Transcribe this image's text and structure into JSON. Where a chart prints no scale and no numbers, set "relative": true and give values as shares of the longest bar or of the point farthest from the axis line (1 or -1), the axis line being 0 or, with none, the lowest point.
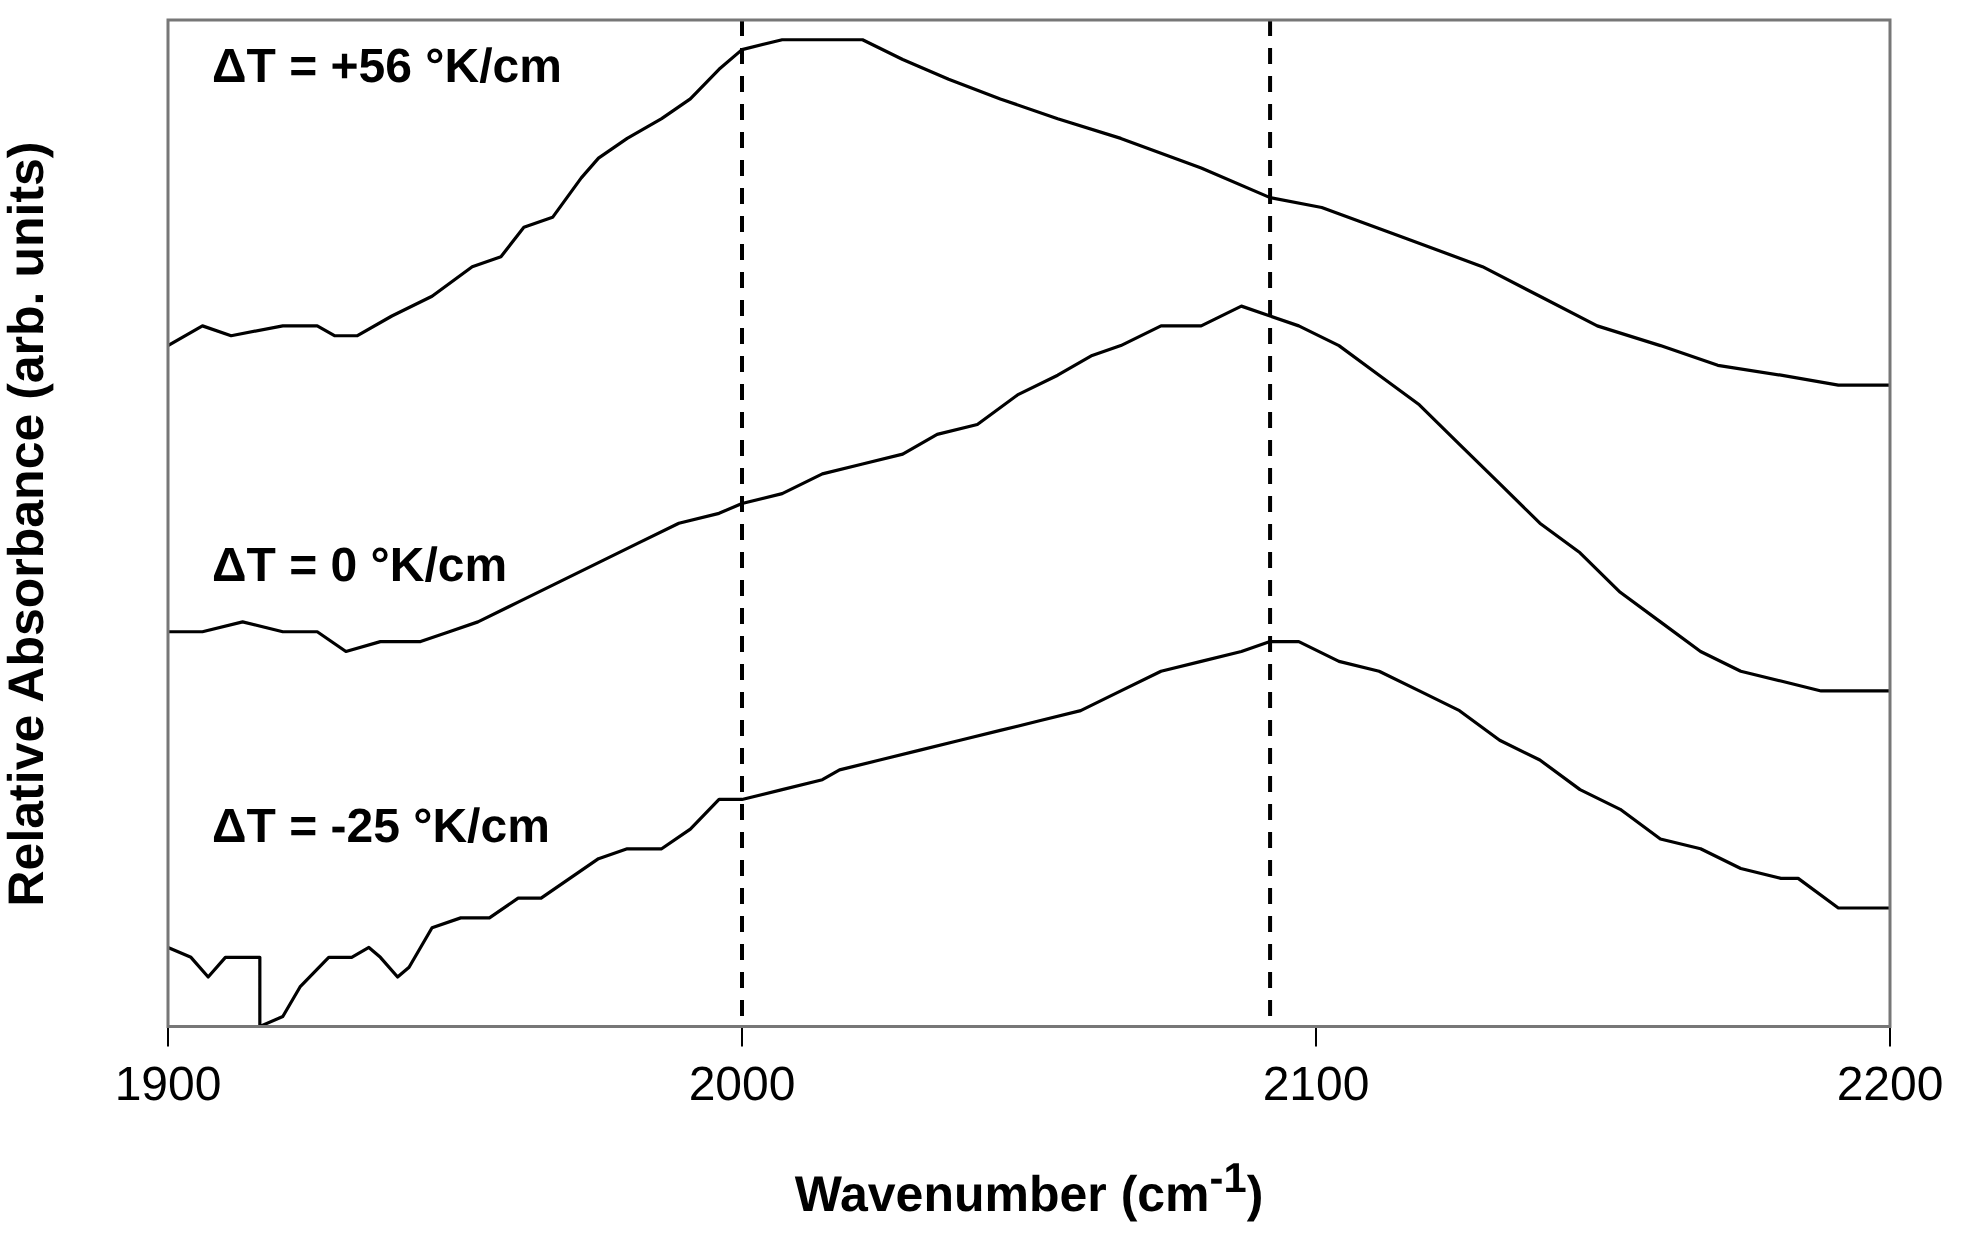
{
  "chart_data": {
    "type": "line",
    "xlabel": "Wavenumber (cm$^{-1}$)",
    "ylabel": "Relative Absorbance (arb. units)",
    "relative": true,
    "xlim": [
      1900,
      2200
    ],
    "xticks": [
      1900,
      2000,
      2100,
      2200
    ],
    "grid": false,
    "legend": false,
    "marker": "none",
    "line_style": "solid",
    "series": [
      {
        "name": "ΔT = +56 °K/cm",
        "color": "#000000",
        "x": [
          1900,
          1906,
          1911,
          1920,
          1926,
          1929,
          1933,
          1939,
          1946,
          1953,
          1958,
          1962,
          1967,
          1972,
          1975,
          1980,
          1986,
          1991,
          1996,
          2000,
          2007,
          2014,
          2021,
          2028,
          2036,
          2045,
          2055,
          2066,
          2080,
          2092,
          2101,
          2115,
          2129,
          2139,
          2149,
          2160,
          2170,
          2181,
          2191,
          2200
        ],
        "values": [
          0.69,
          0.71,
          0.7,
          0.71,
          0.71,
          0.7,
          0.7,
          0.72,
          0.74,
          0.77,
          0.78,
          0.81,
          0.82,
          0.86,
          0.88,
          0.9,
          0.92,
          0.94,
          0.97,
          0.99,
          1.0,
          1.0,
          1.0,
          0.98,
          0.96,
          0.94,
          0.92,
          0.9,
          0.87,
          0.84,
          0.83,
          0.8,
          0.77,
          0.74,
          0.71,
          0.69,
          0.67,
          0.66,
          0.65,
          0.65
        ]
      },
      {
        "name": "ΔT = 0 °K/cm",
        "color": "#000000",
        "x": [
          1900,
          1906,
          1913,
          1920,
          1926,
          1931,
          1937,
          1944,
          1949,
          1954,
          1961,
          1968,
          1975,
          1982,
          1989,
          1996,
          2000,
          2007,
          2014,
          2021,
          2028,
          2034,
          2041,
          2048,
          2055,
          2061,
          2066,
          2073,
          2080,
          2087,
          2092,
          2097,
          2104,
          2111,
          2118,
          2125,
          2132,
          2139,
          2146,
          2153,
          2160,
          2167,
          2174,
          2181,
          2188,
          2195,
          2200
        ],
        "values": [
          0.4,
          0.4,
          0.41,
          0.4,
          0.4,
          0.38,
          0.39,
          0.39,
          0.4,
          0.41,
          0.43,
          0.45,
          0.47,
          0.49,
          0.51,
          0.52,
          0.53,
          0.54,
          0.56,
          0.57,
          0.58,
          0.6,
          0.61,
          0.64,
          0.66,
          0.68,
          0.69,
          0.71,
          0.71,
          0.73,
          0.72,
          0.71,
          0.69,
          0.66,
          0.63,
          0.59,
          0.55,
          0.51,
          0.48,
          0.44,
          0.41,
          0.38,
          0.36,
          0.35,
          0.34,
          0.34,
          0.34
        ]
      },
      {
        "name": "ΔT = -25 °K/cm",
        "color": "#000000",
        "x": [
          1900,
          1904,
          1907,
          1910,
          1913,
          1916,
          1916,
          1920,
          1923,
          1928,
          1932,
          1935,
          1937,
          1940,
          1942,
          1946,
          1951,
          1956,
          1961,
          1965,
          1970,
          1975,
          1980,
          1986,
          1991,
          1996,
          2000,
          2007,
          2014,
          2017,
          2024,
          2031,
          2038,
          2045,
          2052,
          2059,
          2066,
          2073,
          2080,
          2087,
          2092,
          2097,
          2104,
          2111,
          2118,
          2125,
          2132,
          2139,
          2146,
          2153,
          2160,
          2167,
          2174,
          2181,
          2184,
          2191,
          2200
        ],
        "values": [
          0.08,
          0.07,
          0.05,
          0.07,
          0.07,
          0.07,
          0.0,
          0.01,
          0.04,
          0.07,
          0.07,
          0.08,
          0.07,
          0.05,
          0.06,
          0.1,
          0.11,
          0.11,
          0.13,
          0.13,
          0.15,
          0.17,
          0.18,
          0.18,
          0.2,
          0.23,
          0.23,
          0.24,
          0.25,
          0.26,
          0.27,
          0.28,
          0.29,
          0.3,
          0.31,
          0.32,
          0.34,
          0.36,
          0.37,
          0.38,
          0.39,
          0.39,
          0.37,
          0.36,
          0.34,
          0.32,
          0.29,
          0.27,
          0.24,
          0.22,
          0.19,
          0.18,
          0.16,
          0.15,
          0.15,
          0.12,
          0.12
        ]
      }
    ],
    "ref_lines": [
      {
        "axis": "x",
        "value": 2000,
        "line_style": "dashed",
        "color": "#000000"
      },
      {
        "axis": "x",
        "value": 2092,
        "line_style": "dashed",
        "color": "#000000"
      }
    ]
  }
}
